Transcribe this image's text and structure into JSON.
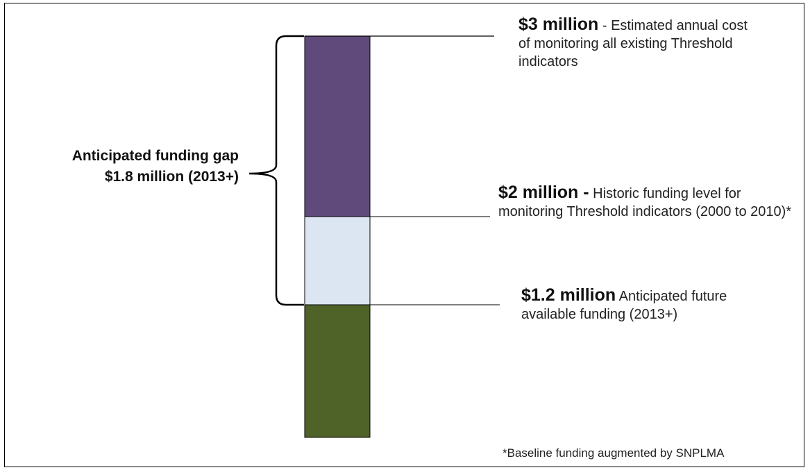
{
  "chart_data": {
    "type": "bar",
    "orientation": "vertical-stacked",
    "title": "",
    "xlabel": "",
    "ylabel": "",
    "series": [
      {
        "name": "",
        "value": 1.2,
        "color": "#4F6228"
      },
      {
        "name": "",
        "value": 2.0,
        "color": "#DCE6F2"
      },
      {
        "name": "",
        "value": 3.0,
        "color": "#604A7B"
      }
    ],
    "ylim": [
      0,
      3
    ],
    "annotations": [
      {
        "value": 3.0,
        "bold": "$3 million",
        "text": "- Estimated annual cost of monitoring all existing Threshold indicators"
      },
      {
        "value": 2.0,
        "bold": "$2 million -",
        "text": "Historic funding level for monitoring Threshold indicators (2000 to 2010)*"
      },
      {
        "value": 1.2,
        "bold": "$1.2 million",
        "text": "Anticipated future available funding (2013+)"
      }
    ],
    "gap": {
      "line1": "Anticipated funding gap",
      "line2": "$1.8 million (2013+)",
      "from": 1.2,
      "to": 3.0
    },
    "footnote": "*Baseline funding augmented by SNPLMA"
  }
}
